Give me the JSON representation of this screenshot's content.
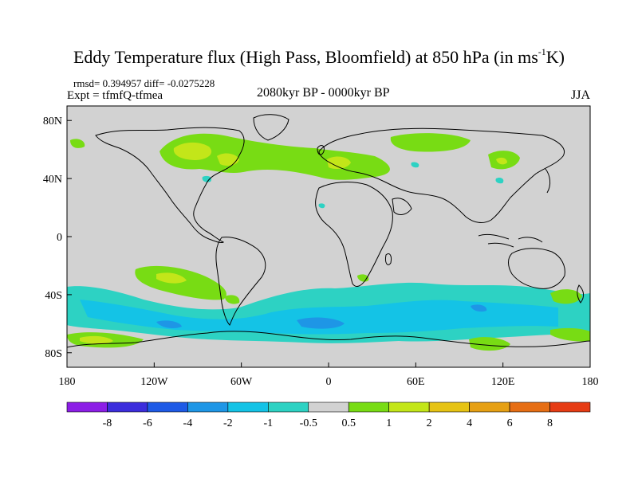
{
  "title_main": "Eddy Temperature flux (High Pass, Bloomfield) at 850 hPa (in ms",
  "title_sup": "-1",
  "title_tail": "K)",
  "stats": "rmsd= 0.394957 diff= -0.0275228",
  "experiment": "Expt = tfmfQ-tfmea",
  "period": "2080kyr BP - 0000kyr BP",
  "season": "JJA",
  "axes": {
    "lat_labels": [
      {
        "lat": 80,
        "text": "80N"
      },
      {
        "lat": 40,
        "text": "40N"
      },
      {
        "lat": 0,
        "text": "0"
      },
      {
        "lat": -40,
        "text": "40S"
      },
      {
        "lat": -80,
        "text": "80S"
      }
    ],
    "lon_labels": [
      {
        "lon": -180,
        "text": "180"
      },
      {
        "lon": -120,
        "text": "120W"
      },
      {
        "lon": -60,
        "text": "60W"
      },
      {
        "lon": 0,
        "text": "0"
      },
      {
        "lon": 60,
        "text": "60E"
      },
      {
        "lon": 120,
        "text": "120E"
      },
      {
        "lon": 180,
        "text": "180"
      }
    ],
    "lat_range": [
      -90,
      90
    ],
    "lon_range": [
      -180,
      180
    ]
  },
  "colorbar": {
    "colors": [
      "#8c1ee6",
      "#3c2ddc",
      "#1e5ae6",
      "#1e96e6",
      "#14c3e6",
      "#2dd2c3",
      "#d2d2d2",
      "#78dc14",
      "#c3e619",
      "#e6c314",
      "#e6a014",
      "#e66e14",
      "#e63c14"
    ],
    "labels": [
      "-8",
      "-6",
      "-4",
      "-2",
      "-1",
      "-0.5",
      "0.5",
      "1",
      "2",
      "4",
      "6",
      "8"
    ]
  },
  "color_key": {
    "neutral": "#d2d2d2",
    "pos1": "#78dc14",
    "pos2": "#c3e619",
    "neg1": "#2dd2c3",
    "neg2": "#14c3e6",
    "neg3": "#1e96e6"
  }
}
